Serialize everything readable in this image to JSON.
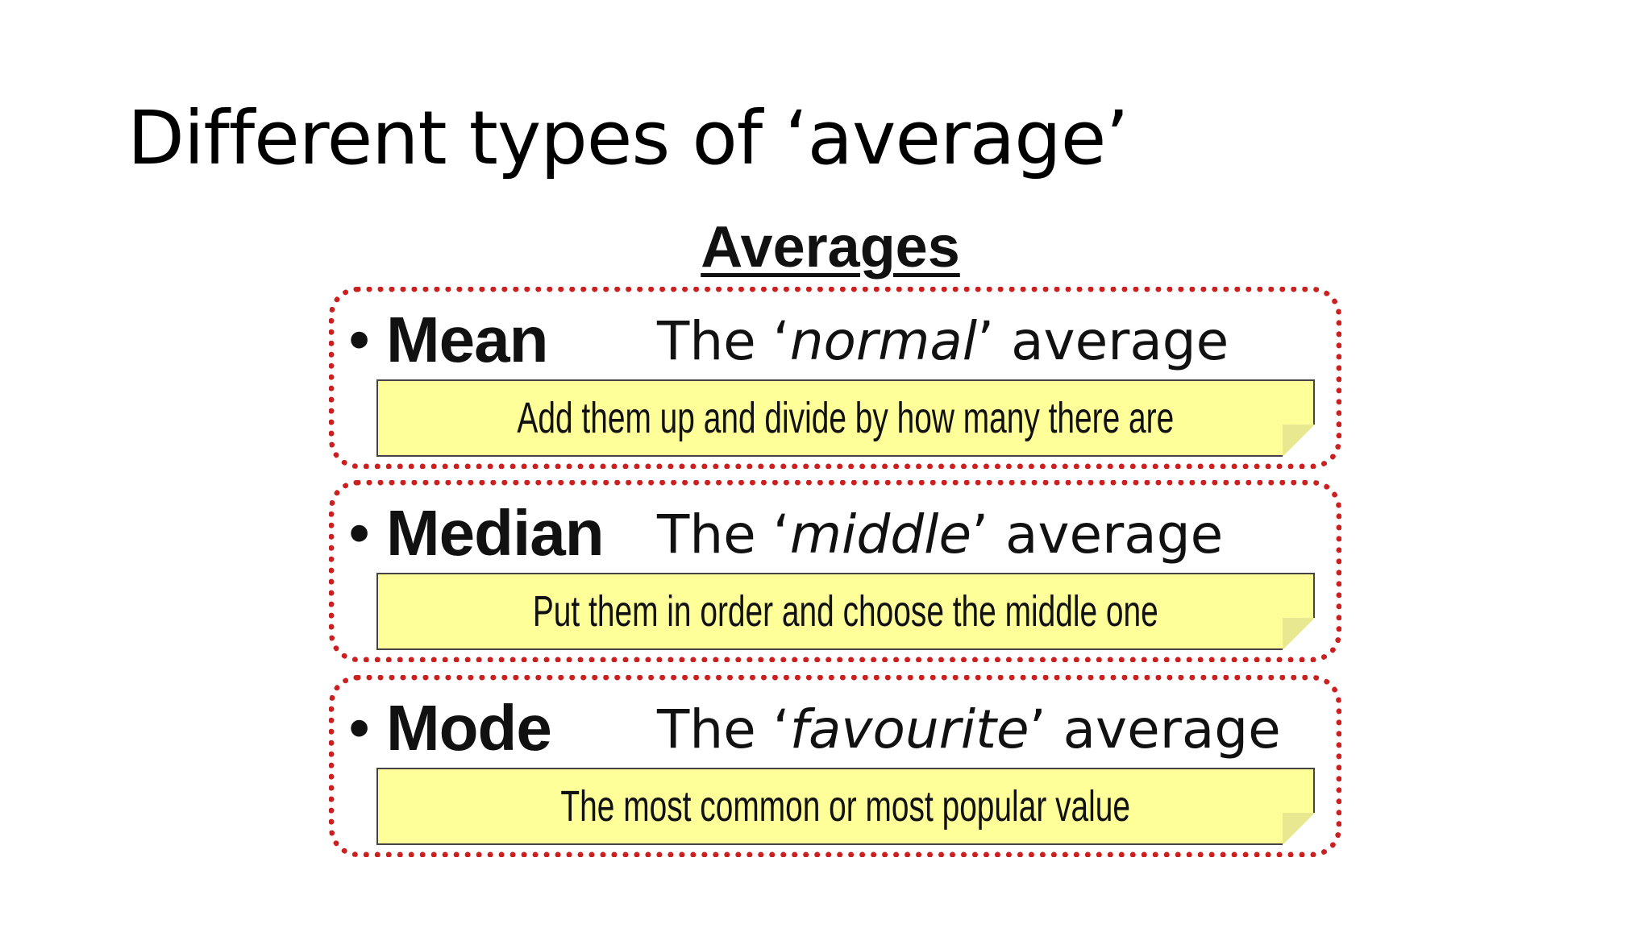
{
  "slide": {
    "title": "Different types of ‘average’"
  },
  "figure": {
    "heading": "Averages",
    "bullet": "•",
    "items": [
      {
        "term": "Mean",
        "desc_prefix": "The ‘",
        "desc_emphasis": "normal",
        "desc_suffix": "’ average",
        "note": "Add them up and divide by how many there are"
      },
      {
        "term": "Median",
        "desc_prefix": "The ‘",
        "desc_emphasis": "middle",
        "desc_suffix": "’ average",
        "note": "Put them in order and choose the middle one"
      },
      {
        "term": "Mode",
        "desc_prefix": "The ‘",
        "desc_emphasis": "favourite",
        "desc_suffix": "’ average",
        "note": "The most common or most popular value"
      }
    ]
  },
  "colors": {
    "box_border": "#cc1f1f",
    "note_background": "#ffff99"
  }
}
